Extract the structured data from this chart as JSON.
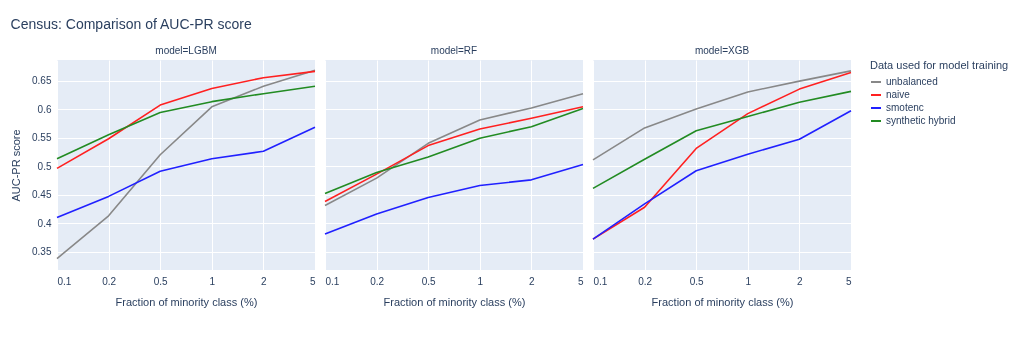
{
  "chart_data": [
    {
      "type": "line",
      "title": "Census: Comparison of AUC-PR score",
      "subtitle": "model=LGBM",
      "xlabel": "Fraction of minority class (%)",
      "ylabel": "AUC-PR score",
      "categories": [
        "0.1",
        "0.2",
        "0.5",
        "1",
        "2",
        "5"
      ],
      "ylim": [
        0.318,
        0.686
      ],
      "yticks": [
        0.35,
        0.4,
        0.45,
        0.5,
        0.55,
        0.6,
        0.65
      ],
      "grid": true,
      "legend": false,
      "series": [
        {
          "color": "#888888",
          "values": [
            0.338,
            0.413,
            0.52,
            0.604,
            0.64,
            0.668
          ]
        },
        {
          "color": "#ff2020",
          "values": [
            0.496,
            0.548,
            0.607,
            0.636,
            0.655,
            0.666
          ]
        },
        {
          "color": "#2020ff",
          "values": [
            0.41,
            0.447,
            0.491,
            0.513,
            0.526,
            0.568
          ]
        },
        {
          "color": "#228b22",
          "values": [
            0.513,
            0.555,
            0.594,
            0.613,
            0.627,
            0.64
          ]
        }
      ]
    },
    {
      "type": "line",
      "subtitle": "model=RF",
      "xlabel": "Fraction of minority class (%)",
      "categories": [
        "0.1",
        "0.2",
        "0.5",
        "1",
        "2",
        "5"
      ],
      "ylim": [
        0.318,
        0.686
      ],
      "yticks": [
        0.35,
        0.4,
        0.45,
        0.5,
        0.55,
        0.6,
        0.65
      ],
      "tick_labels": "x",
      "grid": true,
      "legend": false,
      "series": [
        {
          "color": "#888888",
          "values": [
            0.431,
            0.479,
            0.54,
            0.581,
            0.602,
            0.627
          ]
        },
        {
          "color": "#ff2020",
          "values": [
            0.438,
            0.486,
            0.536,
            0.565,
            0.584,
            0.604
          ]
        },
        {
          "color": "#2020ff",
          "values": [
            0.381,
            0.416,
            0.445,
            0.466,
            0.476,
            0.503
          ]
        },
        {
          "color": "#228b22",
          "values": [
            0.452,
            0.489,
            0.516,
            0.549,
            0.569,
            0.601
          ]
        }
      ]
    },
    {
      "type": "line",
      "subtitle": "model=XGB",
      "xlabel": "Fraction of minority class (%)",
      "legend_title": "Data used for model training",
      "categories": [
        "0.1",
        "0.2",
        "0.5",
        "1",
        "2",
        "5"
      ],
      "ylim": [
        0.318,
        0.686
      ],
      "yticks": [
        0.35,
        0.4,
        0.45,
        0.5,
        0.55,
        0.6,
        0.65
      ],
      "tick_labels": "x",
      "grid": true,
      "legend": "right",
      "series": [
        {
          "name": "unbalanced",
          "color": "#888888",
          "values": [
            0.511,
            0.567,
            0.6,
            0.63,
            0.649,
            0.667
          ]
        },
        {
          "name": "naive",
          "color": "#ff2020",
          "values": [
            0.372,
            0.428,
            0.531,
            0.592,
            0.635,
            0.664
          ]
        },
        {
          "name": "smotenc",
          "color": "#2020ff",
          "values": [
            0.372,
            0.434,
            0.492,
            0.521,
            0.547,
            0.597
          ]
        },
        {
          "name": "synthetic hybrid",
          "color": "#228b22",
          "values": [
            0.461,
            0.512,
            0.562,
            0.587,
            0.612,
            0.631
          ]
        }
      ]
    }
  ]
}
